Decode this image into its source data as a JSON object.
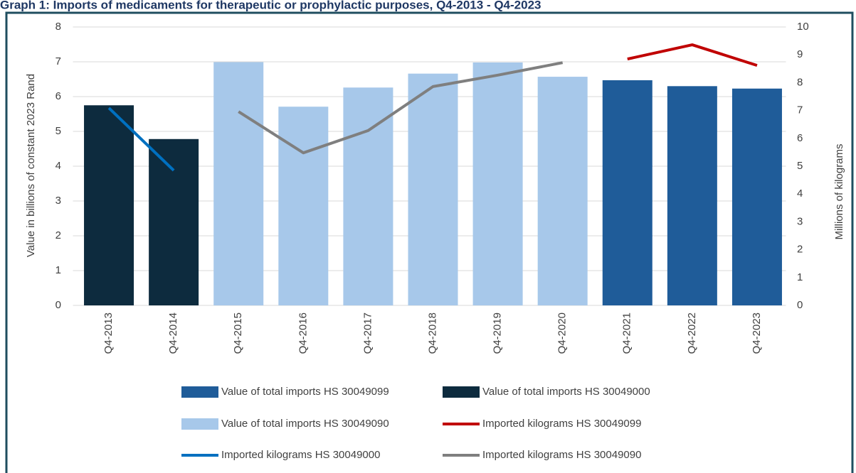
{
  "chart_data": {
    "type": "bar_line",
    "title": "Graph 1: Imports of medicaments for therapeutic or prophylactic purposes, Q4-2013 - Q4-2023",
    "y_label": "Value in billions of constant 2023 Rand",
    "y2_label": "Millions of kilograms",
    "categories": [
      "Q4-2013",
      "Q4-2014",
      "Q4-2015",
      "Q4-2016",
      "Q4-2017",
      "Q4-2018",
      "Q4-2019",
      "Q4-2020",
      "Q4-2021",
      "Q4-2022",
      "Q4-2023"
    ],
    "ylim": [
      0,
      8
    ],
    "yticks": [
      0,
      1,
      2,
      3,
      4,
      5,
      6,
      7,
      8
    ],
    "y2lim": [
      0,
      10
    ],
    "y2ticks": [
      0,
      1,
      2,
      3,
      4,
      5,
      6,
      7,
      8,
      9,
      10
    ],
    "grid": true,
    "series": [
      {
        "name": "Value of total imports HS 30049099",
        "kind": "bar",
        "color": "#1f5c99",
        "values": [
          null,
          null,
          null,
          null,
          null,
          null,
          null,
          null,
          6.47,
          6.3,
          6.23
        ]
      },
      {
        "name": "Value of total imports HS 30049000",
        "kind": "bar",
        "color": "#0d2b3e",
        "values": [
          5.75,
          4.78,
          null,
          null,
          null,
          null,
          null,
          null,
          null,
          null,
          null
        ]
      },
      {
        "name": "Value of total imports HS 30049090",
        "kind": "bar",
        "color": "#a7c8ea",
        "values": [
          null,
          null,
          6.99,
          5.71,
          6.26,
          6.66,
          6.98,
          6.57,
          null,
          null,
          null
        ]
      },
      {
        "name": "Imported kilograms HS 30049099",
        "kind": "line",
        "axis": "y2",
        "color": "#c00000",
        "values": [
          null,
          null,
          null,
          null,
          null,
          null,
          null,
          null,
          8.85,
          9.36,
          8.62
        ]
      },
      {
        "name": "Imported kilograms HS 30049000",
        "kind": "line",
        "axis": "y2",
        "color": "#0070c0",
        "values": [
          7.09,
          4.85,
          null,
          null,
          null,
          null,
          null,
          null,
          null,
          null,
          null
        ]
      },
      {
        "name": "Imported kilograms HS 30049090",
        "kind": "line",
        "axis": "y2",
        "color": "#7f7f7f",
        "values": [
          null,
          null,
          6.96,
          5.48,
          6.28,
          7.86,
          8.27,
          8.72,
          null,
          null,
          null
        ]
      }
    ]
  }
}
